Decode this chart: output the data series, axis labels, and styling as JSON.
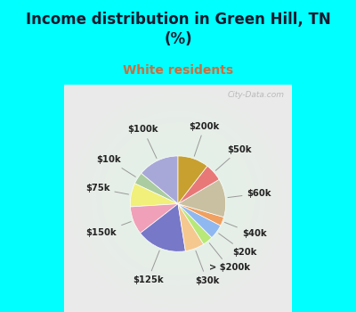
{
  "title": "Income distribution in Green Hill, TN\n(%)",
  "subtitle": "White residents",
  "title_color": "#1a1a2e",
  "subtitle_color": "#c87040",
  "background_top": "#00ffff",
  "watermark": "City-Data.com",
  "labels": [
    "$100k",
    "$10k",
    "$75k",
    "$150k",
    "$125k",
    "$30k",
    "> $200k",
    "$20k",
    "$40k",
    "$60k",
    "$50k",
    "$200k"
  ],
  "values": [
    14.0,
    4.0,
    8.0,
    9.5,
    17.0,
    6.5,
    3.5,
    5.0,
    3.0,
    13.0,
    6.0,
    10.5
  ],
  "colors": [
    "#a8a8d8",
    "#aacca0",
    "#f0f07a",
    "#f0a0b8",
    "#7878c8",
    "#f5c890",
    "#b8e878",
    "#90b8f0",
    "#f0a060",
    "#c8c0a0",
    "#e87878",
    "#c8a030"
  ],
  "startangle": 90,
  "label_fontsize": 7.2,
  "title_fontsize": 12,
  "subtitle_fontsize": 10
}
